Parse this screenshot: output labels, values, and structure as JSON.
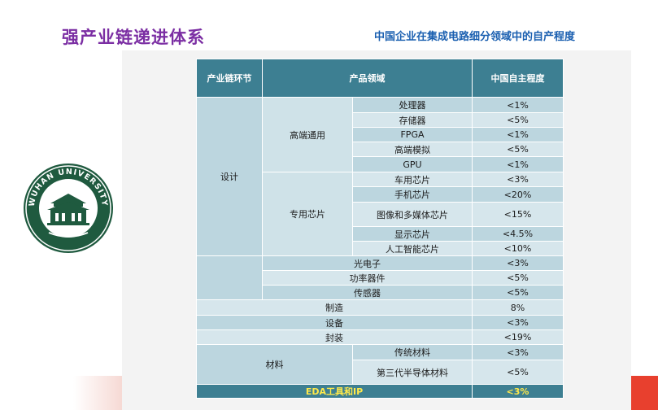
{
  "header": {
    "title": "强产业链递进体系",
    "subtitle": "中国企业在集成电路细分领域中的自产程度"
  },
  "logo": {
    "name": "WUHAN UNIVERSITY"
  },
  "table": {
    "headers": [
      "产业链环节",
      "产品领域",
      "中国自主程度"
    ],
    "design_label": "设计",
    "group1_label": "高端通用",
    "group2_label": "专用芯片",
    "group1": [
      {
        "product": "处理器",
        "value": "<1%"
      },
      {
        "product": "存储器",
        "value": "<5%"
      },
      {
        "product": "FPGA",
        "value": "<1%"
      },
      {
        "product": "高端模拟",
        "value": "<5%"
      },
      {
        "product": "GPU",
        "value": "<1%"
      }
    ],
    "group2": [
      {
        "product": "车用芯片",
        "value": "<3%"
      },
      {
        "product": "手机芯片",
        "value": "<20%"
      },
      {
        "product": "图像和多媒体芯片",
        "value": "<15%"
      },
      {
        "product": "显示芯片",
        "value": "<4.5%"
      },
      {
        "product": "人工智能芯片",
        "value": "<10%"
      }
    ],
    "design_other": [
      {
        "product": "光电子",
        "value": "<3%"
      },
      {
        "product": "功率器件",
        "value": "<5%"
      },
      {
        "product": "传感器",
        "value": "<5%"
      }
    ],
    "chain": [
      {
        "stage": "制造",
        "value": "8%"
      },
      {
        "stage": "设备",
        "value": "<3%"
      },
      {
        "stage": "封装",
        "value": "<19%"
      }
    ],
    "materials_label": "材料",
    "materials": [
      {
        "product": "传统材料",
        "value": "<3%"
      },
      {
        "product": "第三代半导体材料",
        "value": "<5%"
      }
    ],
    "eda": {
      "label": "EDA工具和IP",
      "value": "<3%"
    }
  },
  "colors": {
    "header_bg": "#3d7f92",
    "cell_bg": "#bcd6df",
    "cell_alt_bg": "#d6e6ec",
    "title_color": "#7b2ea3",
    "subtitle_color": "#1a5fb0",
    "eda_text": "#ffe94a"
  }
}
